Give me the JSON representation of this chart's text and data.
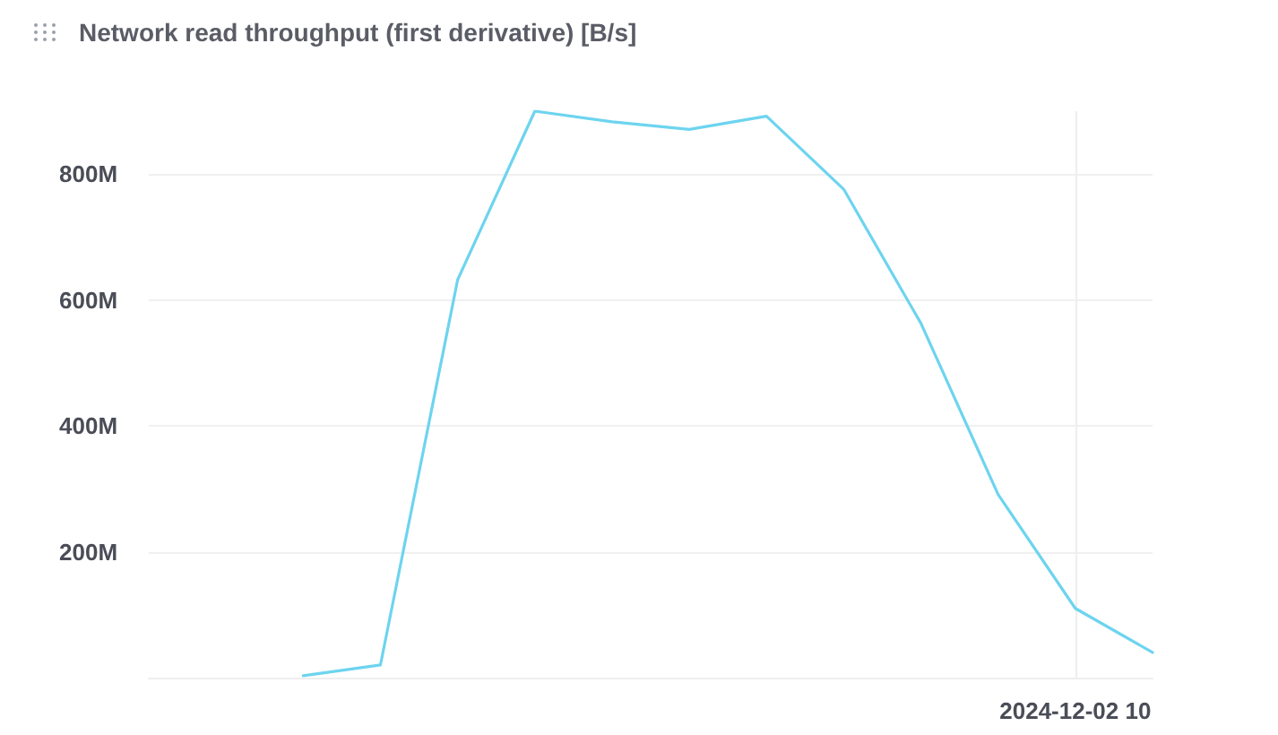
{
  "chart_data": {
    "type": "line",
    "title": "Network read throughput (first derivative) [B/s]",
    "categories": [
      null,
      null,
      null,
      null,
      null,
      null,
      null,
      null,
      null,
      null,
      null,
      null,
      "2024-12-02 10",
      null
    ],
    "series": [
      {
        "color": "#6dd4ef",
        "values": [
          null,
          null,
          3000000,
          20000000,
          632000000,
          900000000,
          883000000,
          871000000,
          892000000,
          776000000,
          563000000,
          291000000,
          110000000,
          40000000
        ]
      }
    ],
    "ylim": [
      0,
      900000000
    ],
    "yticks": [
      {
        "value": 200000000,
        "label": "200M"
      },
      {
        "value": 400000000,
        "label": "400M"
      },
      {
        "value": 600000000,
        "label": "600M"
      },
      {
        "value": 800000000,
        "label": "800M"
      }
    ],
    "grid": true,
    "marker": "none",
    "line_style": "solid"
  }
}
